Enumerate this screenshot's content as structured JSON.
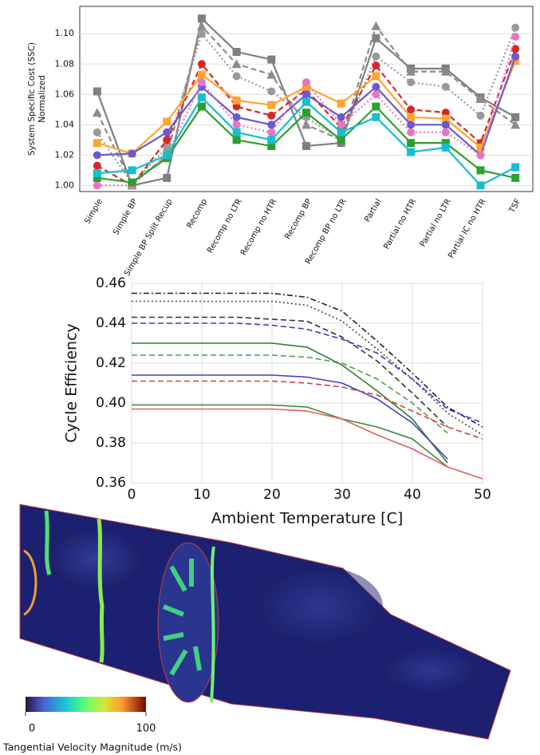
{
  "chart_data": [
    {
      "type": "line",
      "ylabel": [
        "System Specific Cost (SSC)",
        "Normalized"
      ],
      "categories": [
        "Simple",
        "Simple BP",
        "Simple BP Split Recup",
        "Recomp",
        "Recomp no LTR",
        "Recomp no HTR",
        "Recomp BP",
        "Recomp BP no LTR",
        "Partial",
        "Partial no HTR",
        "Partial no LTR",
        "Partial IC no HTR",
        "TSF"
      ],
      "ylim": [
        0.996,
        1.118
      ],
      "yticks": [
        {
          "value": 1.0,
          "label": "1.00"
        },
        {
          "value": 1.02,
          "label": "1.02"
        },
        {
          "value": 1.04,
          "label": "1.04"
        },
        {
          "value": 1.06,
          "label": "1.06"
        },
        {
          "value": 1.08,
          "label": "1.08"
        },
        {
          "value": 1.1,
          "label": "1.10"
        }
      ],
      "grid": true,
      "series": [
        {
          "color": "#7f7f7f",
          "style": "solid",
          "marker": "square",
          "values": [
            1.062,
            1.0,
            1.005,
            1.11,
            1.088,
            1.083,
            1.026,
            1.028,
            1.097,
            1.077,
            1.077,
            1.058,
            1.045
          ]
        },
        {
          "color": "#8c8c8c",
          "style": "dashed",
          "marker": "triangle",
          "values": [
            1.048,
            1.001,
            1.02,
            1.105,
            1.08,
            1.073,
            1.04,
            1.03,
            1.105,
            1.075,
            1.075,
            1.057,
            1.04
          ]
        },
        {
          "color": "#999999",
          "style": "dotted",
          "marker": "circle",
          "values": [
            1.035,
            1.001,
            1.025,
            1.1,
            1.072,
            1.062,
            1.045,
            1.03,
            1.085,
            1.068,
            1.065,
            1.046,
            1.104
          ]
        },
        {
          "color": "#d62728",
          "style": "dashed",
          "marker": "circle",
          "values": [
            1.013,
            1.0,
            1.03,
            1.08,
            1.052,
            1.046,
            1.063,
            1.038,
            1.079,
            1.05,
            1.048,
            1.028,
            1.09
          ]
        },
        {
          "color": "#ffa530",
          "style": "solid",
          "marker": "square",
          "values": [
            1.028,
            1.021,
            1.042,
            1.073,
            1.056,
            1.053,
            1.065,
            1.054,
            1.072,
            1.045,
            1.044,
            1.025,
            1.082
          ]
        },
        {
          "color": "#6a5acd",
          "style": "solid",
          "marker": "circle",
          "values": [
            1.02,
            1.021,
            1.035,
            1.065,
            1.045,
            1.04,
            1.06,
            1.045,
            1.065,
            1.04,
            1.04,
            1.02,
            1.085
          ]
        },
        {
          "color": "#e377c2",
          "style": "dotted",
          "marker": "circle",
          "values": [
            1.0,
            1.0,
            1.02,
            1.068,
            1.04,
            1.035,
            1.068,
            1.04,
            1.06,
            1.035,
            1.035,
            1.02,
            1.098
          ]
        },
        {
          "color": "#2ca02c",
          "style": "solid",
          "marker": "square",
          "values": [
            1.005,
            1.002,
            1.018,
            1.052,
            1.03,
            1.026,
            1.048,
            1.03,
            1.052,
            1.028,
            1.028,
            1.01,
            1.005
          ]
        },
        {
          "color": "#17becf",
          "style": "solid",
          "marker": "square",
          "values": [
            1.008,
            1.01,
            1.02,
            1.058,
            1.035,
            1.03,
            1.055,
            1.035,
            1.045,
            1.022,
            1.025,
            1.0,
            1.012
          ]
        }
      ]
    },
    {
      "type": "line",
      "xlabel": "Ambient Temperature [C]",
      "ylabel": "Cycle Efficiency",
      "x": [
        0,
        5,
        10,
        15,
        20,
        25,
        30,
        35,
        40,
        45,
        50
      ],
      "xlim": [
        0,
        50
      ],
      "xticks": [
        0,
        10,
        20,
        30,
        40,
        50
      ],
      "ylim": [
        0.36,
        0.46
      ],
      "yticks": [
        0.36,
        0.38,
        {
          "value": 0.4,
          "label": "0.40"
        },
        0.42,
        0.44,
        0.46
      ],
      "grid": true,
      "series": [
        {
          "color": "#222222",
          "style": "dashdot",
          "values": [
            0.455,
            0.455,
            0.455,
            0.455,
            0.455,
            0.453,
            0.446,
            0.431,
            0.415,
            0.398,
            0.388
          ]
        },
        {
          "color": "#444444",
          "style": "dotted",
          "values": [
            0.451,
            0.451,
            0.451,
            0.451,
            0.451,
            0.449,
            0.441,
            0.427,
            0.412,
            0.395,
            0.384
          ]
        },
        {
          "color": "#333333",
          "style": "dashed",
          "values": [
            0.443,
            0.443,
            0.443,
            0.443,
            0.442,
            0.441,
            0.433,
            0.421,
            0.405,
            0.388,
            null
          ]
        },
        {
          "color": "#3a3ac8",
          "style": "dashed",
          "values": [
            0.44,
            0.44,
            0.44,
            0.44,
            0.439,
            0.437,
            0.432,
            0.425,
            0.412,
            0.397,
            0.39
          ]
        },
        {
          "color": "#4f9d4f",
          "style": "dashed",
          "values": [
            0.424,
            0.424,
            0.424,
            0.424,
            0.424,
            0.423,
            0.42,
            0.412,
            0.4,
            0.385,
            null
          ]
        },
        {
          "color": "#2f7d2f",
          "style": "solid",
          "values": [
            0.43,
            0.43,
            0.43,
            0.43,
            0.43,
            0.428,
            0.419,
            0.406,
            0.392,
            0.37,
            null
          ]
        },
        {
          "color": "#4040c0",
          "style": "solid",
          "values": [
            0.414,
            0.414,
            0.414,
            0.414,
            0.414,
            0.413,
            0.41,
            0.402,
            0.39,
            0.372,
            null
          ]
        },
        {
          "color": "#d04040",
          "style": "dashed",
          "values": [
            0.411,
            0.411,
            0.411,
            0.411,
            0.411,
            0.41,
            0.408,
            0.404,
            0.396,
            0.388,
            0.382
          ]
        },
        {
          "color": "#3a8a3a",
          "style": "solid",
          "values": [
            0.399,
            0.399,
            0.399,
            0.399,
            0.399,
            0.398,
            0.392,
            0.388,
            0.382,
            0.368,
            null
          ]
        },
        {
          "color": "#e06060",
          "style": "solid",
          "values": [
            0.397,
            0.397,
            0.397,
            0.397,
            0.397,
            0.396,
            0.392,
            0.384,
            0.377,
            0.368,
            0.362
          ]
        }
      ]
    }
  ],
  "colorbar": {
    "ticks": [
      0,
      100
    ],
    "label": "Tangential Velocity Magnitude (m/s)"
  }
}
